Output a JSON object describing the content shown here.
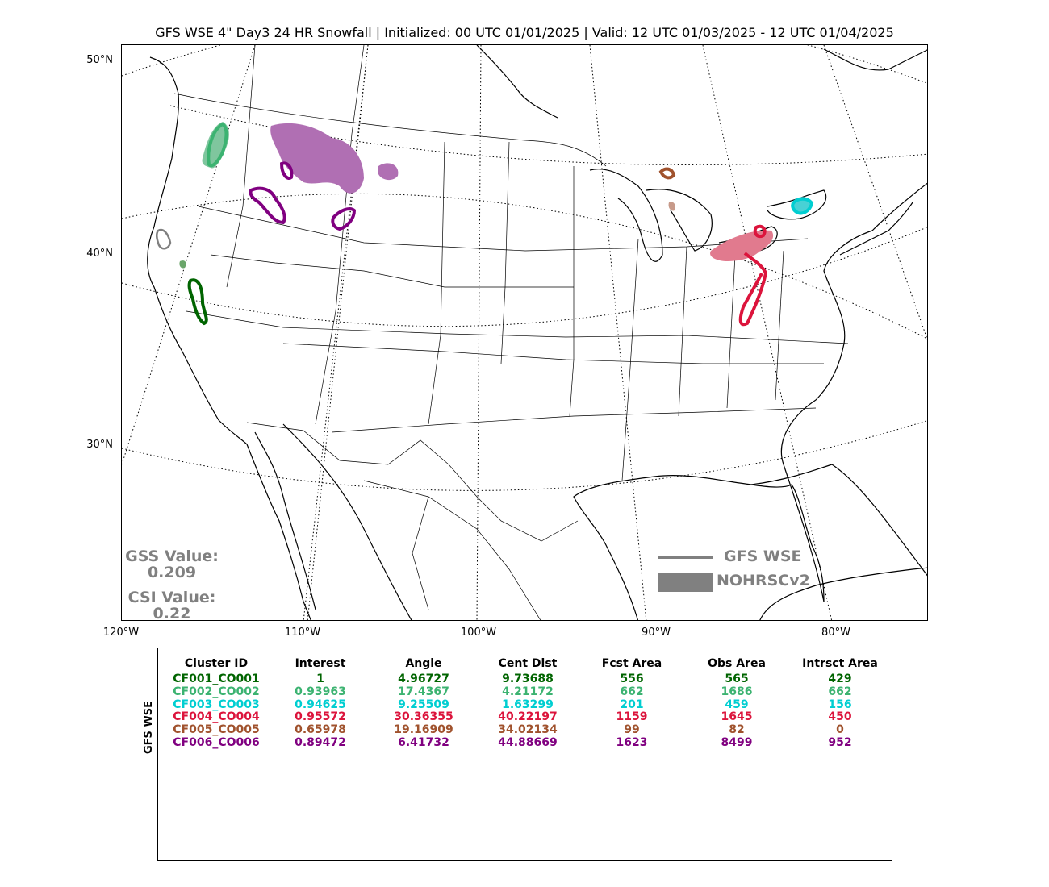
{
  "title": "GFS WSE 4\" Day3 24 HR Snowfall | Initialized: 00 UTC 01/01/2025 | Valid: 12 UTC 01/03/2025 - 12 UTC 01/04/2025",
  "lat_labels": [
    "50°N",
    "40°N",
    "30°N"
  ],
  "lon_labels": [
    "120°W",
    "110°W",
    "100°W",
    "90°W",
    "80°W"
  ],
  "scores": {
    "gss_label": "GSS Value:",
    "gss_value": "0.209",
    "csi_label": "CSI Value:",
    "csi_value": "0.22"
  },
  "legend": {
    "forecast_label": "GFS WSE",
    "observed_label": "NOHRSCv2",
    "color": "#808080"
  },
  "table": {
    "ylabel": "GFS WSE",
    "headers": [
      "Cluster ID",
      "Interest",
      "Angle",
      "Cent Dist",
      "Fcst Area",
      "Obs Area",
      "Intrsct Area"
    ],
    "rows": [
      {
        "color": "#006400",
        "cells": [
          "CF001_CO001",
          "1",
          "4.96727",
          "9.73688",
          "556",
          "565",
          "429"
        ]
      },
      {
        "color": "#3CB371",
        "cells": [
          "CF002_CO002",
          "0.93963",
          "17.4367",
          "4.21172",
          "662",
          "1686",
          "662"
        ]
      },
      {
        "color": "#00CED1",
        "cells": [
          "CF003_CO003",
          "0.94625",
          "9.25509",
          "1.63299",
          "201",
          "459",
          "156"
        ]
      },
      {
        "color": "#DC143C",
        "cells": [
          "CF004_CO004",
          "0.95572",
          "30.36355",
          "40.22197",
          "1159",
          "1645",
          "450"
        ]
      },
      {
        "color": "#A0522D",
        "cells": [
          "CF005_CO005",
          "0.65978",
          "19.16909",
          "34.02134",
          "99",
          "82",
          "0"
        ]
      },
      {
        "color": "#800080",
        "cells": [
          "CF006_CO006",
          "0.89472",
          "6.41732",
          "44.88669",
          "1623",
          "8499",
          "952"
        ]
      }
    ]
  },
  "map_colors": {
    "observed_green_dark": "#6aa56a",
    "observed_green": "#7fc69e",
    "observed_purple": "#b06fb3",
    "observed_red": "#e17a8e",
    "observed_cyan": "#48d1d5",
    "observed_brown": "#c79a8a",
    "unmatched": "#808080"
  }
}
